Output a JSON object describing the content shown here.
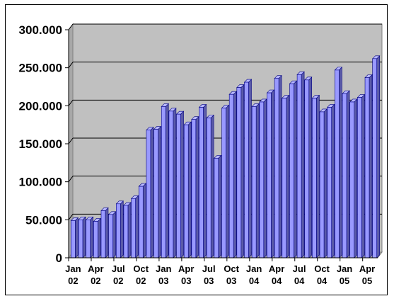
{
  "chart_data": {
    "type": "bar",
    "title": "",
    "xlabel": "",
    "ylabel": "",
    "ylim": [
      0,
      300000
    ],
    "yticks": [
      0,
      50000,
      100000,
      150000,
      200000,
      250000,
      300000
    ],
    "ytick_labels": [
      "0",
      "50.000",
      "100.000",
      "150.000",
      "200.000",
      "250.000",
      "300.000"
    ],
    "xtick_labels": [
      [
        "Jan",
        "02"
      ],
      [
        "Apr",
        "02"
      ],
      [
        "Jul",
        "02"
      ],
      [
        "Oct",
        "02"
      ],
      [
        "Jan",
        "03"
      ],
      [
        "Apr",
        "03"
      ],
      [
        "Jul",
        "03"
      ],
      [
        "Oct",
        "03"
      ],
      [
        "Jan",
        "04"
      ],
      [
        "Apr",
        "04"
      ],
      [
        "Jul",
        "04"
      ],
      [
        "Oct",
        "04"
      ],
      [
        "Jan",
        "05"
      ],
      [
        "Apr",
        "05"
      ]
    ],
    "categories": [
      "Jan 02",
      "Feb 02",
      "Mar 02",
      "Apr 02",
      "May 02",
      "Jun 02",
      "Jul 02",
      "Aug 02",
      "Sep 02",
      "Oct 02",
      "Nov 02",
      "Dec 02",
      "Jan 03",
      "Feb 03",
      "Mar 03",
      "Apr 03",
      "May 03",
      "Jun 03",
      "Jul 03",
      "Aug 03",
      "Sep 03",
      "Oct 03",
      "Nov 03",
      "Dec 03",
      "Jan 04",
      "Feb 04",
      "Mar 04",
      "Apr 04",
      "May 04",
      "Jun 04",
      "Jul 04",
      "Aug 04",
      "Sep 04",
      "Oct 04",
      "Nov 04",
      "Dec 04",
      "Jan 05",
      "Feb 05",
      "Mar 05",
      "Apr 05",
      "May 05"
    ],
    "values": [
      49000,
      50000,
      50000,
      48000,
      62000,
      57000,
      71000,
      69000,
      78000,
      94000,
      168000,
      169000,
      199000,
      193000,
      189000,
      175000,
      182000,
      198000,
      184000,
      131000,
      197000,
      215000,
      224000,
      231000,
      199000,
      205000,
      217000,
      236000,
      210000,
      229000,
      241000,
      234000,
      210000,
      192000,
      198000,
      247000,
      216000,
      205000,
      211000,
      237000,
      262000
    ],
    "grid": true,
    "legend": "none",
    "colors": {
      "plot_background": "#c0c0c0",
      "bar_face": "#9999ff",
      "bar_top": "#b8b8ff",
      "bar_side": "#5a5aa8",
      "bar_edge": "#000080",
      "gridline": "#000000"
    }
  }
}
